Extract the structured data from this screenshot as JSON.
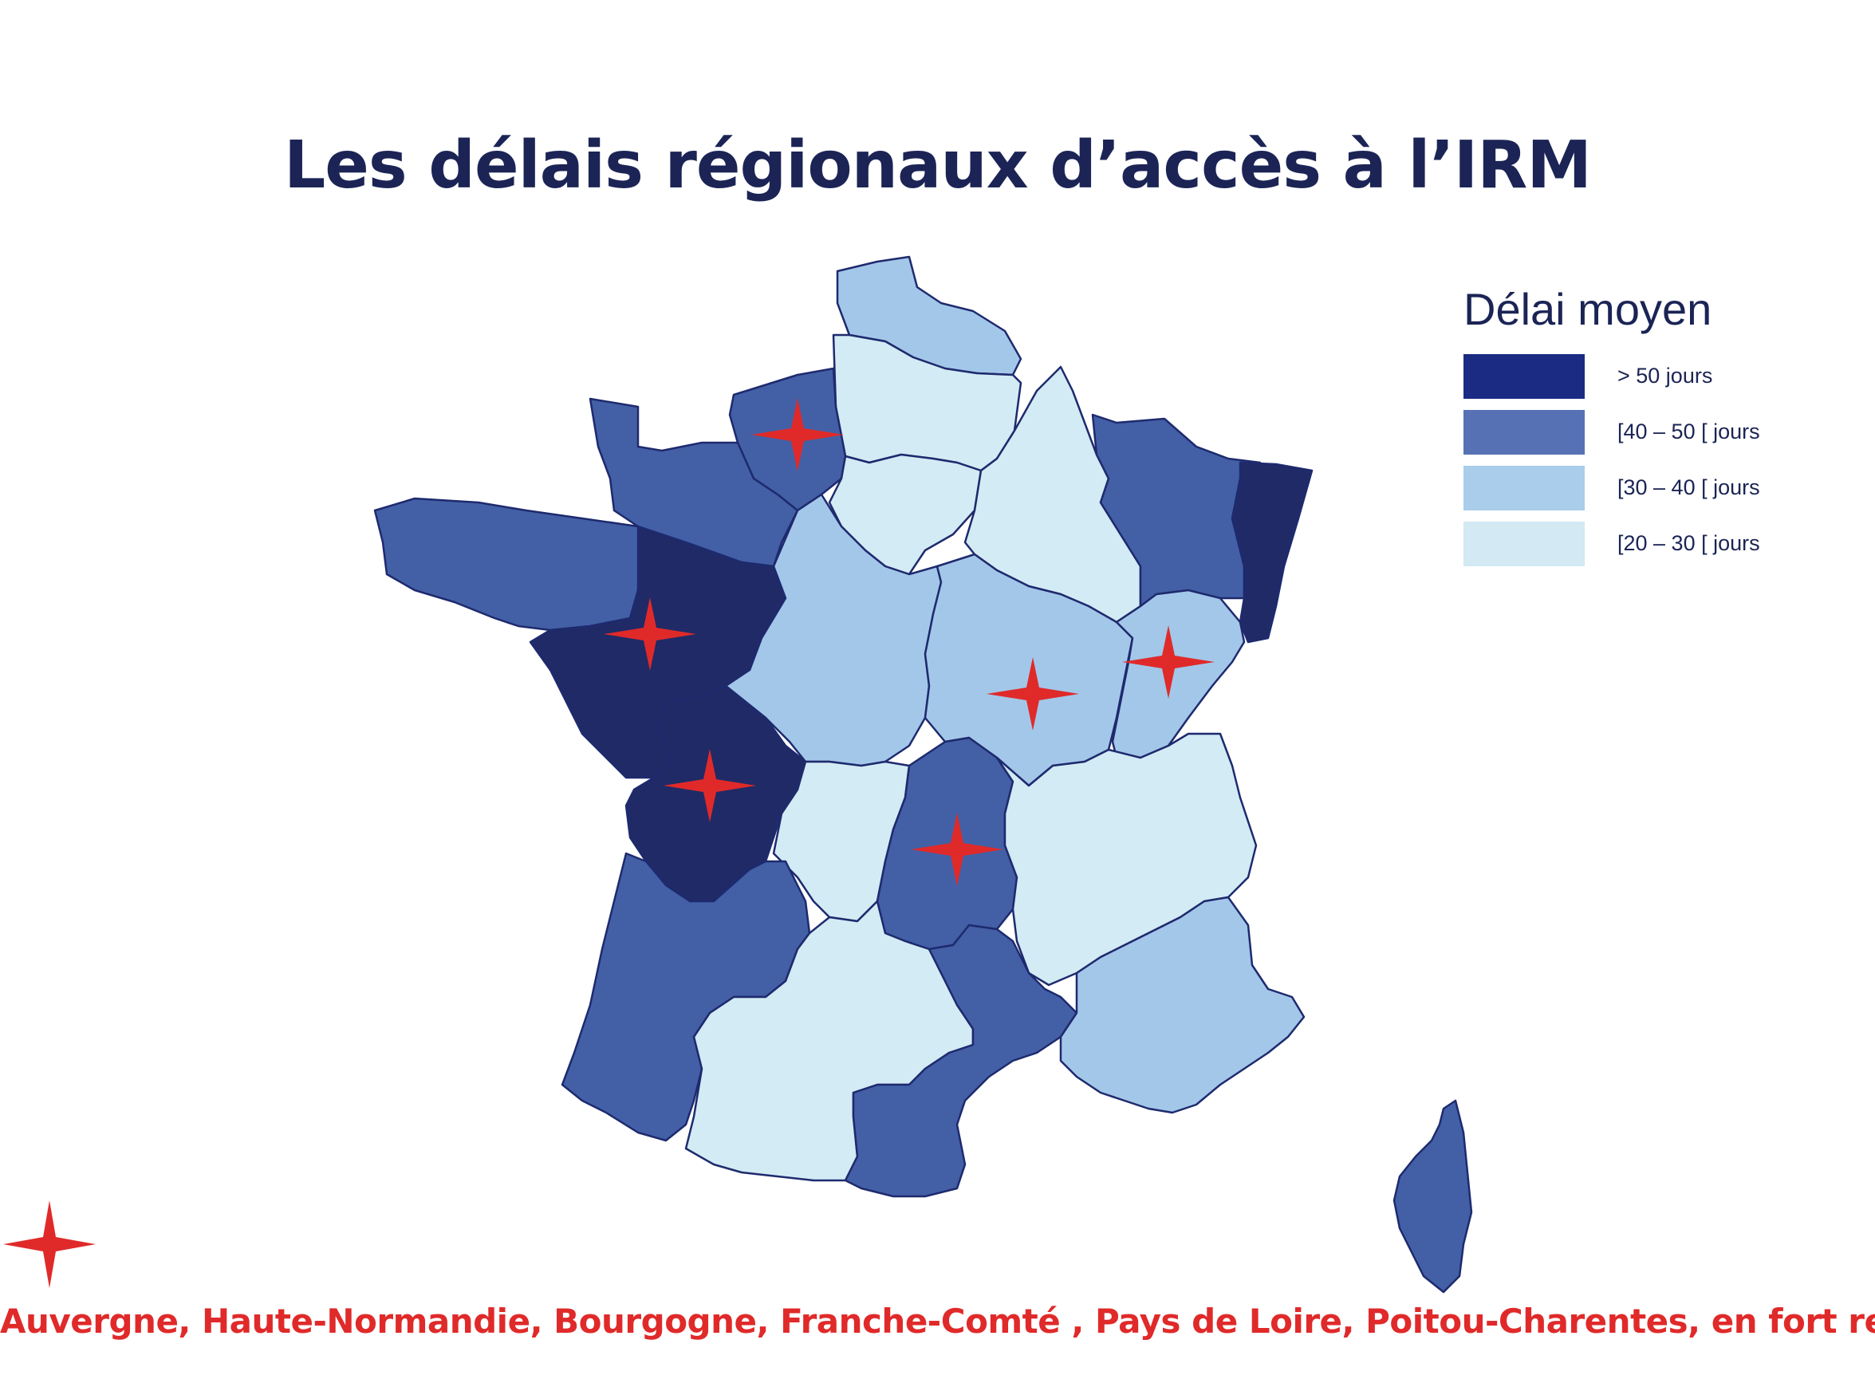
{
  "title": "Les délais régionaux d’accès à l’IRM",
  "legend": {
    "title": "Délai moyen",
    "items": [
      {
        "label": "> 50 jours",
        "color": "#1b2a82"
      },
      {
        "label": "[40 – 50 [ jours",
        "color": "#5672b4"
      },
      {
        "label": "[30 – 40 [ jours",
        "color": "#a9cdea"
      },
      {
        "label": "[20 – 30 [ jours",
        "color": "#d3e9f4"
      }
    ]
  },
  "classes": {
    "gt50": "#202a66",
    "c40_50": "#4360a6",
    "c30_40": "#a3c7e9",
    "c20_30": "#d3ebf4"
  },
  "border_color": "#1e2a6e",
  "marker": {
    "icon": "red-star-icon",
    "color": "#e02a2a"
  },
  "footer_note": "Auvergne, Haute-Normandie, Bourgogne, Franche-Comté , Pays de Loire, Poitou-Charentes, en fort recul"
}
